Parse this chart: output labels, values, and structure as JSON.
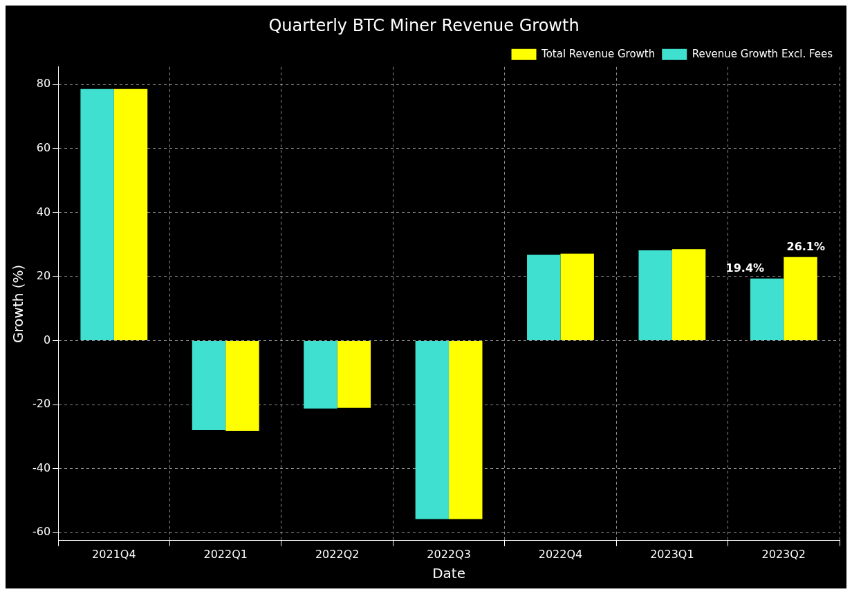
{
  "chart_data": {
    "type": "bar",
    "title": "Quarterly BTC Miner Revenue Growth",
    "xlabel": "Date",
    "ylabel": "Growth (%)",
    "categories": [
      "2021Q4",
      "2022Q1",
      "2022Q2",
      "2022Q3",
      "2022Q4",
      "2023Q1",
      "2023Q2"
    ],
    "series": [
      {
        "name": "Revenue Growth Excl. Fees",
        "color": "#40e0d0",
        "values": [
          78.6,
          -28.0,
          -21.2,
          -55.8,
          26.8,
          28.2,
          19.4
        ],
        "value_labels": [
          null,
          null,
          null,
          null,
          null,
          null,
          "19.4%"
        ]
      },
      {
        "name": "Total Revenue Growth",
        "color": "#ffff00",
        "values": [
          78.6,
          -28.2,
          -21.0,
          -55.8,
          27.2,
          28.6,
          26.1
        ],
        "value_labels": [
          null,
          null,
          null,
          null,
          null,
          null,
          "26.1%"
        ]
      }
    ],
    "ylim": [
      -62.5,
      85.5
    ],
    "yticks": [
      -60,
      -40,
      -20,
      0,
      20,
      40,
      60,
      80
    ],
    "grid": true,
    "legend": "top right"
  }
}
